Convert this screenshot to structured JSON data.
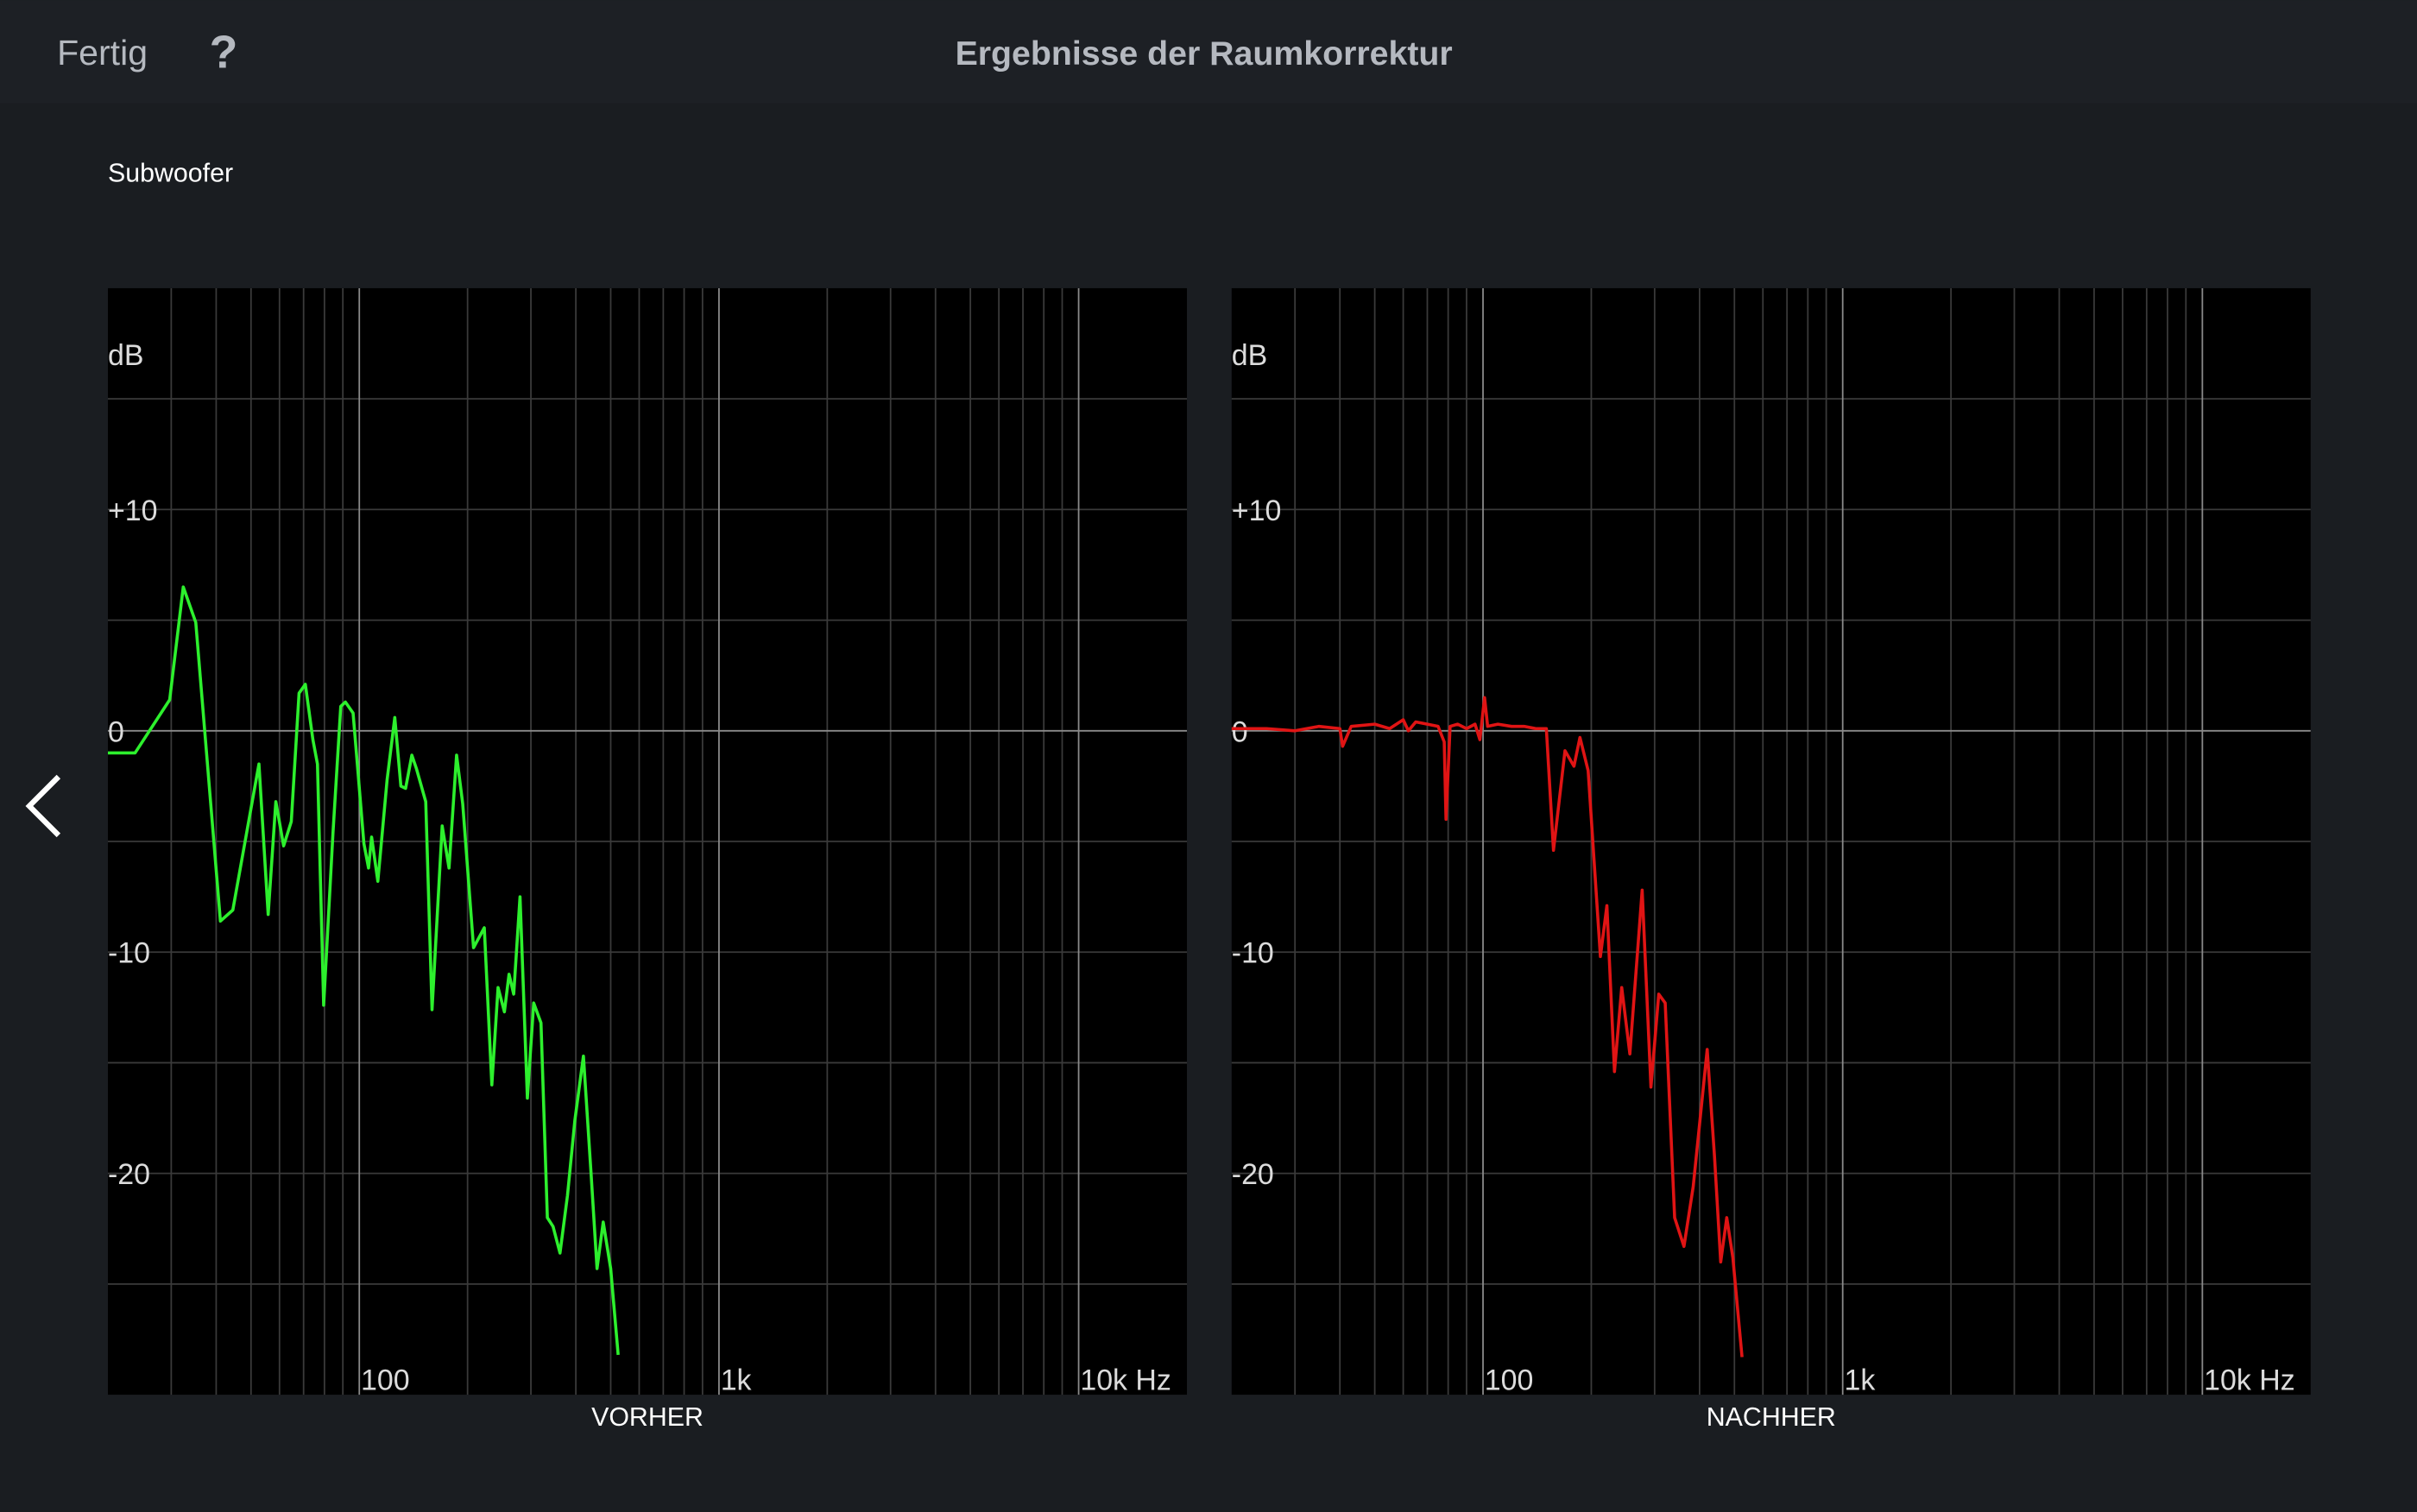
{
  "header": {
    "done": "Fertig",
    "help": "?",
    "title": "Ergebnisse der Raumkorrektur"
  },
  "section": "Subwoofer",
  "chart_data": [
    {
      "type": "line",
      "xlabel": "VORHER",
      "ylabel": "dB",
      "xscale": "log",
      "xlim": [
        20,
        20000
      ],
      "ylim": [
        -30,
        20
      ],
      "xticks": [
        100,
        {
          "value": 1000,
          "label": "1k"
        },
        {
          "value": 10000,
          "label": "10k Hz"
        }
      ],
      "yticks": [
        {
          "value": 10,
          "label": "+10"
        },
        0,
        -10,
        -20
      ],
      "x_minor_grid": [
        30,
        40,
        50,
        60,
        70,
        80,
        90,
        200,
        300,
        400,
        500,
        600,
        700,
        800,
        900,
        2000,
        3000,
        4000,
        5000,
        6000,
        7000,
        8000,
        9000
      ],
      "y_minor_grid": [
        15,
        5,
        -5,
        -15,
        -25
      ],
      "series": [
        {
          "color": "#2df02d",
          "x": [
            20,
            23.8,
            29.7,
            32.4,
            35.1,
            41.1,
            44.5,
            52.6,
            55.8,
            58.6,
            61.6,
            64.7,
            68.0,
            70.8,
            74.3,
            76.5,
            79.6,
            84.5,
            88.8,
            91.5,
            96.1,
            103.0,
            106.1,
            108.2,
            112.6,
            119.5,
            125.5,
            130.5,
            134.5,
            140.0,
            144.1,
            153.0,
            159.3,
            170.0,
            177.6,
            186.4,
            193.9,
            207.8,
            222.6,
            233.6,
            243.1,
            253.2,
            260.8,
            268.7,
            279.8,
            293.3,
            305.4,
            320.0,
            333.3,
            345.7,
            361.4,
            379.1,
            397.5,
            419.9,
            440.5,
            458.1,
            476.6,
            499.9,
            524.5
          ],
          "values": [
            -1.0,
            -1.0,
            1.4,
            6.5,
            4.9,
            -8.6,
            -8.1,
            -1.5,
            -8.3,
            -3.2,
            -5.2,
            -4.1,
            1.7,
            2.1,
            -0.4,
            -1.5,
            -12.4,
            -4.6,
            1.1,
            1.3,
            0.8,
            -5.1,
            -6.2,
            -4.8,
            -6.8,
            -2.2,
            0.6,
            -2.5,
            -2.6,
            -1.1,
            -1.7,
            -3.2,
            -12.6,
            -4.3,
            -6.2,
            -1.1,
            -3.3,
            -9.8,
            -8.9,
            -16.0,
            -11.6,
            -12.7,
            -11.0,
            -11.9,
            -7.5,
            -16.6,
            -12.3,
            -13.2,
            -22.0,
            -22.4,
            -23.6,
            -21.0,
            -17.6,
            -14.7,
            -19.9,
            -24.3,
            -22.2,
            -24.3,
            -28.2
          ]
        }
      ]
    },
    {
      "type": "line",
      "xlabel": "NACHHER",
      "ylabel": "dB",
      "xscale": "log",
      "xlim": [
        20,
        20000
      ],
      "ylim": [
        -30,
        20
      ],
      "xticks": [
        100,
        {
          "value": 1000,
          "label": "1k"
        },
        {
          "value": 10000,
          "label": "10k Hz"
        }
      ],
      "yticks": [
        {
          "value": 10,
          "label": "+10"
        },
        0,
        -10,
        -20
      ],
      "x_minor_grid": [
        30,
        40,
        50,
        60,
        70,
        80,
        90,
        200,
        300,
        400,
        500,
        600,
        700,
        800,
        900,
        2000,
        3000,
        4000,
        5000,
        6000,
        7000,
        8000,
        9000
      ],
      "y_minor_grid": [
        15,
        5,
        -5,
        -15,
        -25
      ],
      "series": [
        {
          "color": "#e01414",
          "x": [
            20,
            25,
            30,
            35,
            40,
            40.7,
            43,
            50,
            55,
            60,
            62,
            65,
            70,
            75,
            78,
            78.9,
            81,
            85,
            90,
            95,
            98,
            101,
            103,
            110,
            120,
            130,
            140,
            150,
            157,
            169,
            179,
            186,
            196,
            212,
            221,
            232,
            243,
            256,
            277,
            293,
            308,
            321,
            341,
            362,
            384,
            420,
            440,
            458,
            476,
            495,
            525
          ],
          "values": [
            0.1,
            0.1,
            0.0,
            0.2,
            0.1,
            -0.7,
            0.2,
            0.3,
            0.1,
            0.5,
            0.0,
            0.4,
            0.3,
            0.2,
            -0.5,
            -4.0,
            0.2,
            0.3,
            0.1,
            0.3,
            -0.4,
            1.5,
            0.2,
            0.3,
            0.2,
            0.2,
            0.1,
            0.1,
            -5.4,
            -0.9,
            -1.6,
            -0.3,
            -1.8,
            -10.2,
            -7.9,
            -15.4,
            -11.6,
            -14.6,
            -7.2,
            -16.1,
            -11.9,
            -12.3,
            -22.0,
            -23.3,
            -20.6,
            -14.4,
            -19.2,
            -24.0,
            -22.0,
            -23.8,
            -28.3
          ]
        }
      ]
    }
  ]
}
